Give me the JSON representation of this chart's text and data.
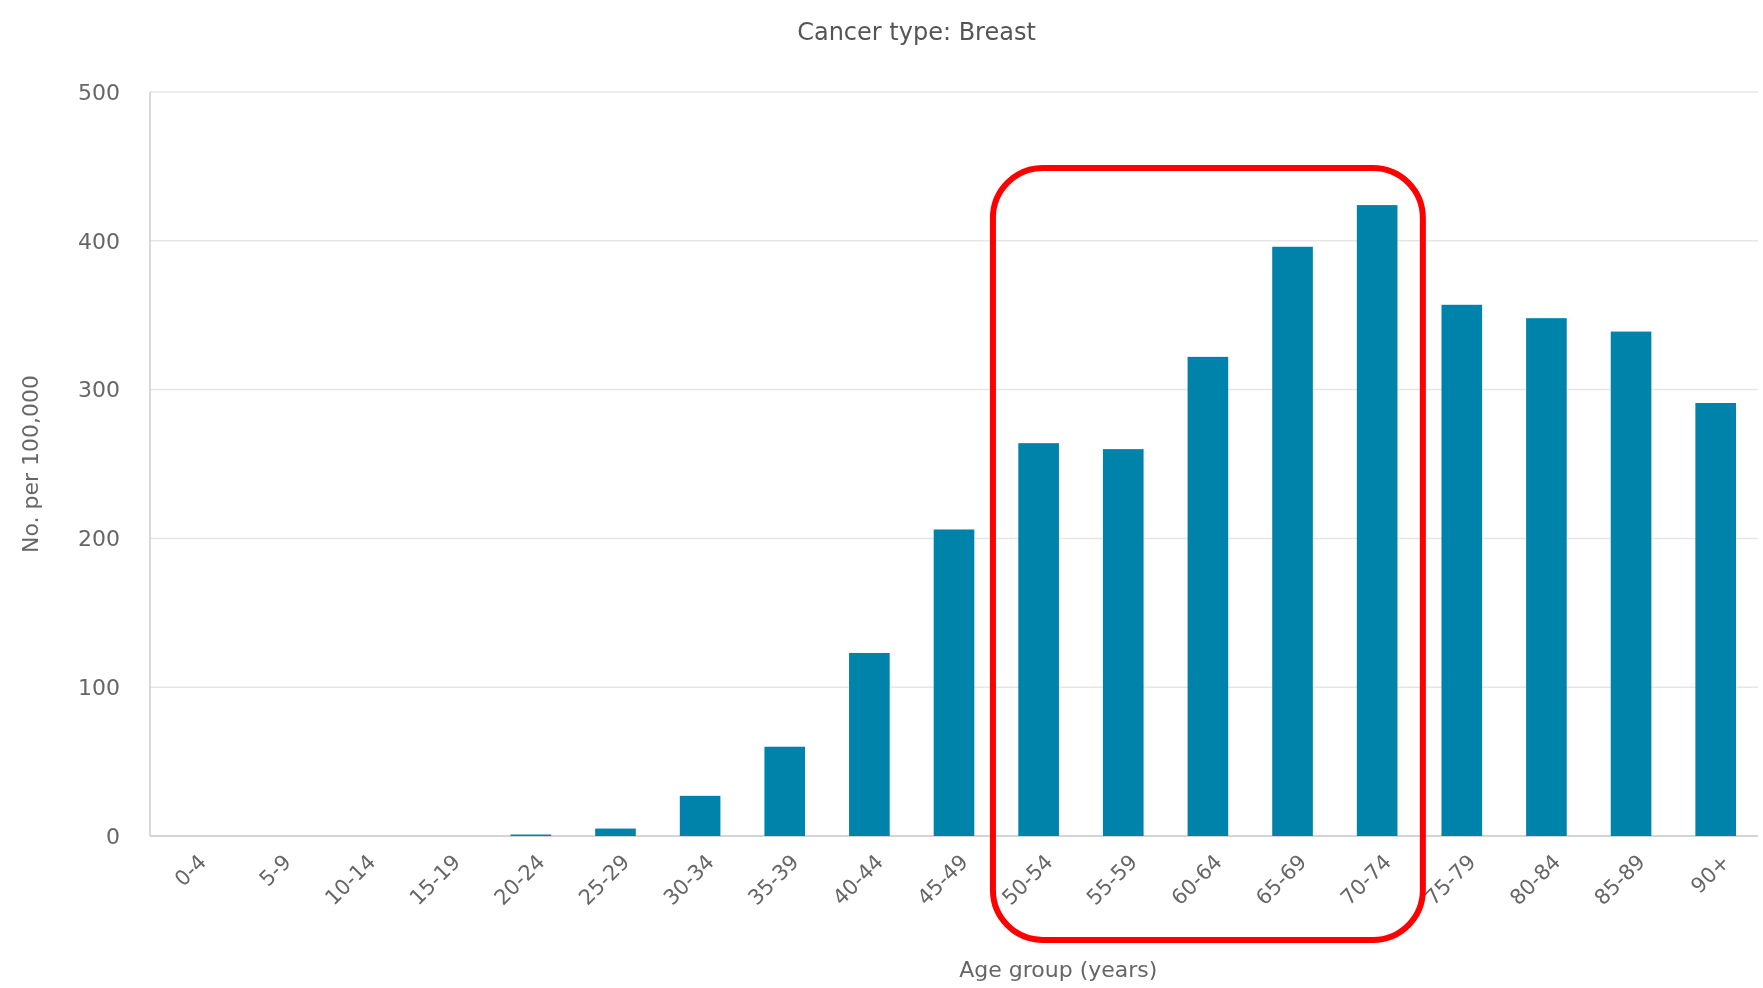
{
  "chart_data": {
    "type": "bar",
    "title": "Cancer type: Breast",
    "xlabel": "Age group (years)",
    "ylabel": "No. per 100,000",
    "categories": [
      "0-4",
      "5-9",
      "10-14",
      "15-19",
      "20-24",
      "25-29",
      "30-34",
      "35-39",
      "40-44",
      "45-49",
      "50-54",
      "55-59",
      "60-64",
      "65-69",
      "70-74",
      "75-79",
      "80-84",
      "85-89",
      "90+"
    ],
    "values": [
      0,
      0,
      0,
      0,
      1,
      5,
      27,
      60,
      123,
      206,
      264,
      260,
      322,
      396,
      424,
      357,
      348,
      339,
      291
    ],
    "color": "#0083ab",
    "ylim": [
      0,
      500
    ],
    "yticks": [
      0,
      100,
      200,
      300,
      400,
      500
    ],
    "grid": "y"
  }
}
